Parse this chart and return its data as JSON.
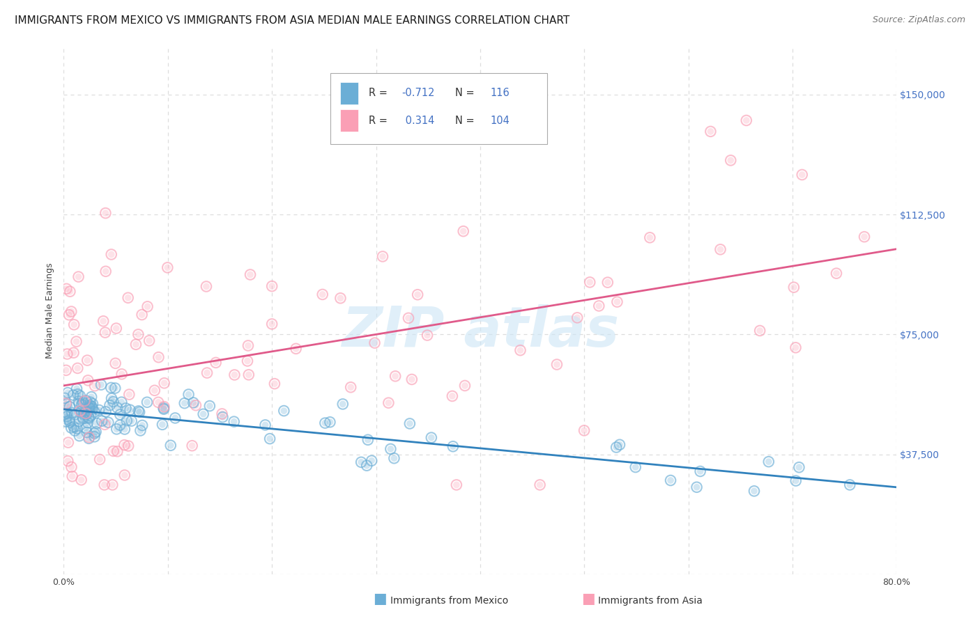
{
  "title": "IMMIGRANTS FROM MEXICO VS IMMIGRANTS FROM ASIA MEDIAN MALE EARNINGS CORRELATION CHART",
  "source": "Source: ZipAtlas.com",
  "ylabel": "Median Male Earnings",
  "x_min": 0.0,
  "x_max": 0.8,
  "y_min": 0,
  "y_max": 165000,
  "y_ticks": [
    0,
    37500,
    75000,
    112500,
    150000
  ],
  "y_tick_labels": [
    "",
    "$37,500",
    "$75,000",
    "$112,500",
    "$150,000"
  ],
  "mexico_color": "#6baed6",
  "asia_color": "#fa9fb5",
  "mexico_line_color": "#3182bd",
  "asia_line_color": "#e05a8a",
  "mexico_R": -0.712,
  "mexico_N": 116,
  "asia_R": 0.314,
  "asia_N": 104,
  "legend_label_mexico": "Immigrants from Mexico",
  "legend_label_asia": "Immigrants from Asia",
  "bg_color": "#ffffff",
  "grid_color": "#dddddd",
  "title_fontsize": 11,
  "axis_label_fontsize": 9,
  "tick_fontsize": 9
}
